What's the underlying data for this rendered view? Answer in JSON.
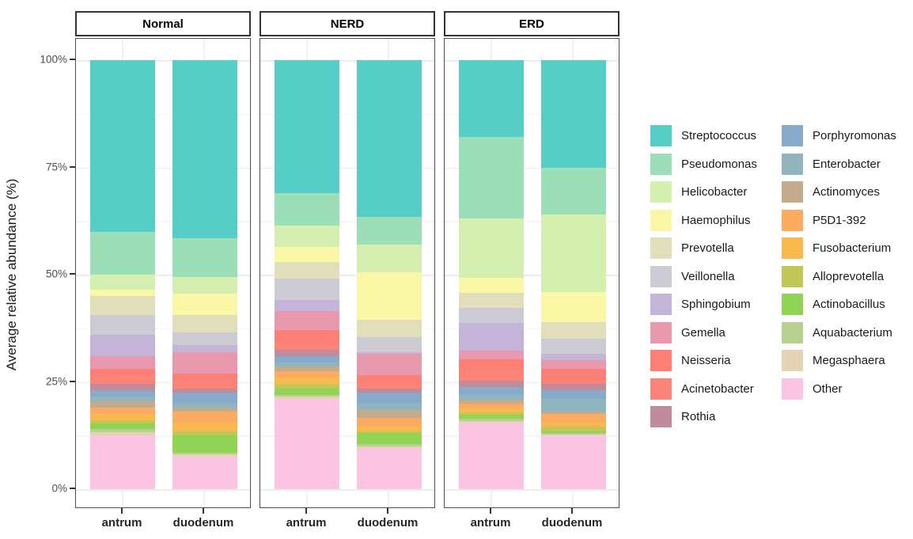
{
  "chart_data": {
    "type": "bar",
    "stacked": true,
    "title": "",
    "xlabel": "",
    "ylabel": "Average relative abundance (%)",
    "ylim": [
      0,
      100
    ],
    "ytick_values": [
      0,
      25,
      50,
      75,
      100
    ],
    "ytick_labels": [
      "0%",
      "25%",
      "50%",
      "75%",
      "100%"
    ],
    "grid": true,
    "legend_position": "right",
    "legend_column_split": 11,
    "facets": [
      "Normal",
      "NERD",
      "ERD"
    ],
    "categories": [
      "antrum",
      "duodenum"
    ],
    "series_note": "values = percent per facet in facet order, each entry [antrum, duodenum]; stacks top-to-bottom in listed order",
    "series": [
      {
        "name": "Streptococcus",
        "color": "#57CEC5",
        "values": [
          [
            40,
            41.5
          ],
          [
            31,
            36.5
          ],
          [
            18,
            25
          ]
        ]
      },
      {
        "name": "Pseudomonas",
        "color": "#9CDEB8",
        "values": [
          [
            10,
            9
          ],
          [
            7.5,
            6.5
          ],
          [
            19,
            11
          ]
        ]
      },
      {
        "name": "Helicobacter",
        "color": "#D5EFB0",
        "values": [
          [
            3.5,
            4
          ],
          [
            5,
            6.5
          ],
          [
            14,
            18
          ]
        ]
      },
      {
        "name": "Haemophilus",
        "color": "#FAF7A6",
        "values": [
          [
            1.5,
            5
          ],
          [
            3.5,
            11
          ],
          [
            3.5,
            7
          ]
        ]
      },
      {
        "name": "Prevotella",
        "color": "#E1DFBB",
        "values": [
          [
            4.5,
            4
          ],
          [
            4,
            4
          ],
          [
            3.5,
            4
          ]
        ]
      },
      {
        "name": "Veillonella",
        "color": "#CCCAD2",
        "values": [
          [
            4.5,
            3
          ],
          [
            5,
            3.5
          ],
          [
            3.5,
            3.5
          ]
        ]
      },
      {
        "name": "Sphingobium",
        "color": "#C4B4D8",
        "values": [
          [
            5,
            1.5
          ],
          [
            2.5,
            0.5
          ],
          [
            6.5,
            1.5
          ]
        ]
      },
      {
        "name": "Gemella",
        "color": "#E899AD",
        "values": [
          [
            3,
            5
          ],
          [
            4.5,
            5
          ],
          [
            2,
            2
          ]
        ]
      },
      {
        "name": "Neisseria",
        "color": "#FC8076",
        "values": [
          [
            2,
            2
          ],
          [
            3.5,
            2
          ],
          [
            2.5,
            2.5
          ]
        ]
      },
      {
        "name": "Acinetobacter",
        "color": "#FA8478",
        "values": [
          [
            1.5,
            1.5
          ],
          [
            1,
            1
          ],
          [
            2.5,
            1
          ]
        ]
      },
      {
        "name": "Rothia",
        "color": "#C08C9C",
        "values": [
          [
            1.5,
            1
          ],
          [
            1.5,
            1
          ],
          [
            1.5,
            1.5
          ]
        ]
      },
      {
        "name": "Porphyromonas",
        "color": "#88ABCC",
        "values": [
          [
            1.5,
            2.5
          ],
          [
            1.5,
            2.5
          ],
          [
            2,
            2
          ]
        ]
      },
      {
        "name": "Enterobacter",
        "color": "#90B5BF",
        "values": [
          [
            1,
            1
          ],
          [
            1,
            1.5
          ],
          [
            1,
            3
          ]
        ]
      },
      {
        "name": "Actinomyces",
        "color": "#C3AB8C",
        "values": [
          [
            1.5,
            1
          ],
          [
            1,
            2
          ],
          [
            1,
            0.5
          ]
        ]
      },
      {
        "name": "P5D1-392",
        "color": "#FBAC60",
        "values": [
          [
            1.5,
            2.5
          ],
          [
            1.5,
            2
          ],
          [
            1,
            2
          ]
        ]
      },
      {
        "name": "Fusobacterium",
        "color": "#F8B950",
        "values": [
          [
            1.5,
            2
          ],
          [
            1.5,
            1
          ],
          [
            1,
            1
          ]
        ]
      },
      {
        "name": "Alloprevotella",
        "color": "#C0C754",
        "values": [
          [
            0.8,
            1
          ],
          [
            1,
            0.5
          ],
          [
            0.5,
            1
          ]
        ]
      },
      {
        "name": "Actinobacillus",
        "color": "#90D355",
        "values": [
          [
            1.2,
            4
          ],
          [
            1.5,
            2.5
          ],
          [
            1,
            0.5
          ]
        ]
      },
      {
        "name": "Aquabacterium",
        "color": "#B5D08F",
        "values": [
          [
            0.7,
            0.5
          ],
          [
            0.5,
            0.5
          ],
          [
            0.5,
            0.25
          ]
        ]
      },
      {
        "name": "Megasphaera",
        "color": "#E4D3B5",
        "values": [
          [
            0.8,
            0.5
          ],
          [
            0.5,
            0.5
          ],
          [
            0.5,
            0.25
          ]
        ]
      },
      {
        "name": "Other",
        "color": "#FBC4E2",
        "values": [
          [
            12.5,
            7.5
          ],
          [
            21,
            9.5
          ],
          [
            15.5,
            12.5
          ]
        ]
      }
    ]
  }
}
